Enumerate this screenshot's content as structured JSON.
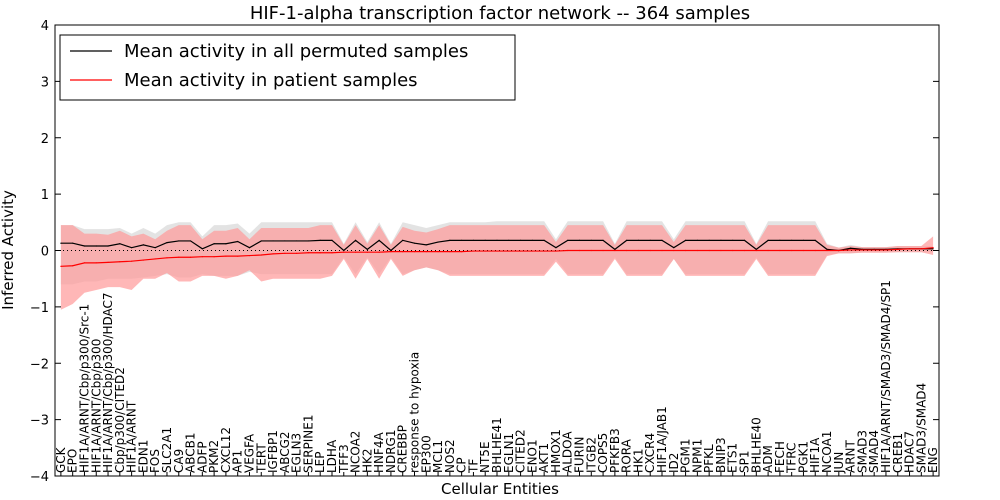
{
  "chart_data": {
    "type": "line",
    "title": "HIF-1-alpha transcription factor network -- 364 samples",
    "xlabel": "Cellular Entities",
    "ylabel": "Inferred Activity",
    "ylim": [
      -4,
      4
    ],
    "yticks": [
      -4,
      -3,
      -2,
      -1,
      0,
      1,
      2,
      3,
      4
    ],
    "ytick_labels": [
      "−4",
      "−3",
      "−2",
      "−1",
      "0",
      "1",
      "2",
      "3",
      "4"
    ],
    "legend_position": "upper-left",
    "categories": [
      "GCK",
      "EPO",
      "HIF1A/ARNT/Cbp/p300/Src-1",
      "HIF1A/ARNT/Cbp/p300",
      "HIF1A/ARNT/Cbp/p300/HDAC7",
      "Cbp/p300/CITED2",
      "HIF1A/ARNT",
      "EDN1",
      "FOS",
      "SLC2A1",
      "CA9",
      "ABCB1",
      "ADFP",
      "PKM2",
      "CXCL12",
      "AP1",
      "VEGFA",
      "TERT",
      "IGFBP1",
      "ABCG2",
      "EGLN3",
      "SERPINE1",
      "LEP",
      "LDHA",
      "TFF3",
      "NCOA2",
      "HK2",
      "HNF4A",
      "NDRG1",
      "CREBBP",
      "response to hypoxia",
      "EP300",
      "MCL1",
      "NOS2",
      "CP",
      "TF",
      "NT5E",
      "BHLHE41",
      "EGLN1",
      "CITED2",
      "ENO1",
      "AKT1",
      "HMOX1",
      "ALDOA",
      "FURIN",
      "ITGB2",
      "COPS5",
      "PFKFB3",
      "RORA",
      "HK1",
      "CXCR4",
      "HIF1A/JAB1",
      "ID2",
      "PGM1",
      "NPM1",
      "PFKL",
      "BNIP3",
      "ETS1",
      "SP1",
      "BHLHE40",
      "ADM",
      "FECH",
      "TFRC",
      "PGK1",
      "HIF1A",
      "NCOA1",
      "JUN",
      "ARNT",
      "SMAD3",
      "SMAD4",
      "HIF1A/ARNT/SMAD3/SMAD4/SP1",
      "CREB1",
      "HDAC7",
      "SMAD3/SMAD4",
      "ENG"
    ],
    "series": [
      {
        "name": "Mean activity in all permuted samples",
        "color": "#000000",
        "band_color": "#cccccc",
        "values": [
          0.13,
          0.13,
          0.08,
          0.08,
          0.08,
          0.12,
          0.05,
          0.1,
          0.05,
          0.14,
          0.17,
          0.17,
          0.03,
          0.12,
          0.12,
          0.16,
          0.05,
          0.17,
          0.17,
          0.17,
          0.17,
          0.17,
          0.18,
          0.18,
          0.0,
          0.18,
          0.02,
          0.18,
          0.0,
          0.18,
          0.13,
          0.1,
          0.15,
          0.18,
          0.18,
          0.18,
          0.18,
          0.18,
          0.18,
          0.18,
          0.18,
          0.18,
          0.05,
          0.18,
          0.18,
          0.18,
          0.18,
          0.02,
          0.18,
          0.18,
          0.18,
          0.18,
          0.05,
          0.18,
          0.18,
          0.18,
          0.18,
          0.18,
          0.18,
          0.02,
          0.18,
          0.18,
          0.18,
          0.18,
          0.18,
          0.02,
          0.0,
          0.04,
          0.02,
          0.02,
          0.02,
          0.03,
          0.03,
          0.03,
          0.03
        ],
        "band_low": [
          -0.6,
          -0.6,
          -0.55,
          -0.55,
          -0.5,
          -0.5,
          -0.5,
          -0.48,
          -0.45,
          -0.42,
          -0.48,
          -0.48,
          -0.42,
          -0.45,
          -0.45,
          -0.45,
          -0.38,
          -0.42,
          -0.42,
          -0.42,
          -0.42,
          -0.42,
          -0.42,
          -0.42,
          -0.12,
          -0.42,
          -0.12,
          -0.42,
          -0.12,
          -0.42,
          -0.35,
          -0.3,
          -0.35,
          -0.42,
          -0.42,
          -0.42,
          -0.42,
          -0.42,
          -0.42,
          -0.42,
          -0.42,
          -0.42,
          -0.15,
          -0.42,
          -0.42,
          -0.42,
          -0.42,
          -0.12,
          -0.42,
          -0.42,
          -0.42,
          -0.42,
          -0.15,
          -0.42,
          -0.42,
          -0.42,
          -0.42,
          -0.42,
          -0.42,
          -0.12,
          -0.42,
          -0.42,
          -0.42,
          -0.42,
          -0.42,
          -0.08,
          -0.05,
          -0.05,
          -0.03,
          -0.03,
          -0.03,
          -0.03,
          -0.03,
          -0.03,
          -0.03
        ],
        "band_high": [
          0.45,
          0.45,
          0.38,
          0.38,
          0.38,
          0.4,
          0.3,
          0.4,
          0.3,
          0.45,
          0.5,
          0.5,
          0.25,
          0.45,
          0.45,
          0.48,
          0.3,
          0.5,
          0.5,
          0.5,
          0.5,
          0.5,
          0.5,
          0.5,
          0.12,
          0.5,
          0.15,
          0.5,
          0.12,
          0.5,
          0.45,
          0.4,
          0.45,
          0.5,
          0.5,
          0.5,
          0.5,
          0.52,
          0.52,
          0.52,
          0.52,
          0.52,
          0.2,
          0.52,
          0.52,
          0.52,
          0.52,
          0.12,
          0.52,
          0.52,
          0.52,
          0.52,
          0.2,
          0.52,
          0.52,
          0.52,
          0.52,
          0.52,
          0.52,
          0.12,
          0.52,
          0.52,
          0.52,
          0.52,
          0.52,
          0.12,
          0.05,
          0.1,
          0.06,
          0.06,
          0.06,
          0.08,
          0.08,
          0.08,
          0.08
        ]
      },
      {
        "name": "Mean activity in patient samples",
        "color": "#ff0000",
        "band_color": "#ff9999",
        "values": [
          -0.28,
          -0.27,
          -0.22,
          -0.22,
          -0.21,
          -0.2,
          -0.19,
          -0.17,
          -0.15,
          -0.13,
          -0.12,
          -0.12,
          -0.11,
          -0.11,
          -0.1,
          -0.1,
          -0.09,
          -0.08,
          -0.06,
          -0.05,
          -0.05,
          -0.04,
          -0.04,
          -0.04,
          -0.03,
          -0.03,
          -0.03,
          -0.03,
          -0.02,
          -0.02,
          -0.02,
          -0.02,
          -0.02,
          -0.02,
          -0.02,
          -0.01,
          -0.01,
          -0.01,
          -0.01,
          -0.01,
          -0.01,
          -0.01,
          -0.01,
          0.0,
          0.0,
          0.0,
          0.0,
          0.0,
          0.0,
          0.0,
          0.0,
          0.0,
          0.0,
          0.0,
          0.0,
          0.0,
          0.0,
          0.0,
          0.0,
          0.0,
          0.0,
          0.0,
          0.0,
          0.0,
          0.0,
          0.0,
          0.0,
          0.01,
          0.01,
          0.01,
          0.01,
          0.02,
          0.03,
          0.03,
          0.05
        ],
        "band_low": [
          -1.05,
          -0.95,
          -0.75,
          -0.7,
          -0.65,
          -0.65,
          -0.7,
          -0.5,
          -0.5,
          -0.4,
          -0.55,
          -0.55,
          -0.45,
          -0.45,
          -0.5,
          -0.45,
          -0.35,
          -0.55,
          -0.5,
          -0.5,
          -0.5,
          -0.5,
          -0.5,
          -0.45,
          -0.15,
          -0.5,
          -0.15,
          -0.5,
          -0.15,
          -0.45,
          -0.35,
          -0.3,
          -0.35,
          -0.45,
          -0.45,
          -0.45,
          -0.45,
          -0.45,
          -0.45,
          -0.45,
          -0.45,
          -0.45,
          -0.2,
          -0.45,
          -0.45,
          -0.45,
          -0.45,
          -0.15,
          -0.45,
          -0.45,
          -0.45,
          -0.45,
          -0.15,
          -0.45,
          -0.45,
          -0.45,
          -0.45,
          -0.45,
          -0.45,
          -0.15,
          -0.45,
          -0.45,
          -0.45,
          -0.45,
          -0.45,
          -0.1,
          -0.05,
          -0.05,
          -0.04,
          -0.04,
          -0.04,
          -0.03,
          -0.03,
          -0.03,
          -0.08
        ],
        "band_high": [
          0.45,
          0.45,
          0.3,
          0.3,
          0.28,
          0.35,
          0.25,
          0.3,
          0.2,
          0.35,
          0.45,
          0.45,
          0.2,
          0.35,
          0.35,
          0.4,
          0.2,
          0.4,
          0.4,
          0.4,
          0.4,
          0.4,
          0.45,
          0.45,
          0.1,
          0.45,
          0.12,
          0.45,
          0.1,
          0.42,
          0.35,
          0.32,
          0.38,
          0.45,
          0.45,
          0.45,
          0.45,
          0.45,
          0.45,
          0.45,
          0.45,
          0.45,
          0.15,
          0.45,
          0.45,
          0.45,
          0.45,
          0.1,
          0.45,
          0.45,
          0.45,
          0.45,
          0.15,
          0.45,
          0.45,
          0.45,
          0.45,
          0.45,
          0.45,
          0.1,
          0.45,
          0.45,
          0.45,
          0.45,
          0.45,
          0.1,
          0.05,
          0.08,
          0.06,
          0.06,
          0.06,
          0.08,
          0.08,
          0.08,
          0.25
        ]
      }
    ]
  }
}
